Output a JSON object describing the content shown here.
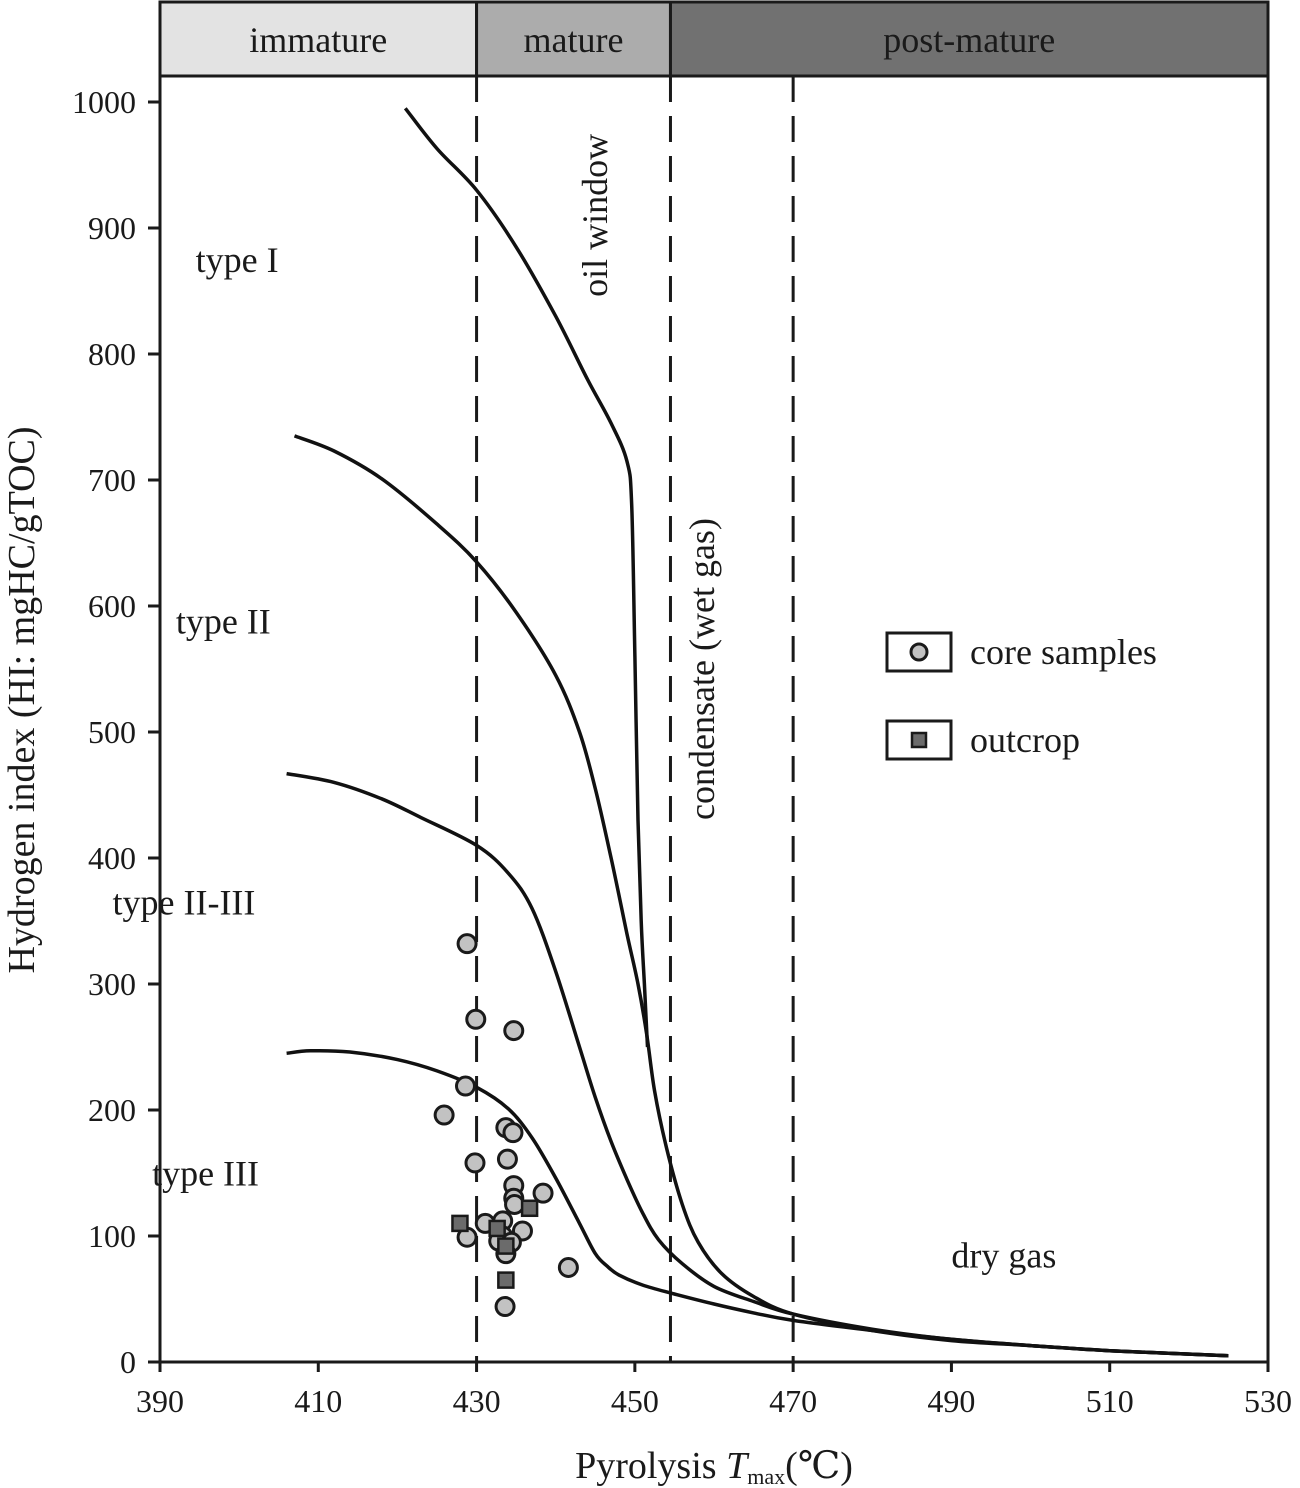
{
  "chart_data": {
    "type": "scatter",
    "xlabel": {
      "main": "Pyrolysis ",
      "italic": "T",
      "sub": "max",
      "unit": "(℃)"
    },
    "ylabel": "Hydrogen index (HI: mgHC/gTOC)",
    "xlim": [
      390,
      530
    ],
    "ylim": [
      0,
      1000
    ],
    "xticks": [
      390,
      410,
      430,
      450,
      470,
      490,
      510,
      530
    ],
    "yticks": [
      0,
      100,
      200,
      300,
      400,
      500,
      600,
      700,
      800,
      900,
      1000
    ],
    "grid": false,
    "legend_position": "right",
    "maturity_bands": [
      {
        "label": "immature",
        "from": 390,
        "to": 430,
        "color": "#e3e3e3"
      },
      {
        "label": "mature",
        "from": 430,
        "to": 454.5,
        "color": "#acacac"
      },
      {
        "label": "post-mature",
        "from": 454.5,
        "to": 530,
        "color": "#717171"
      }
    ],
    "dashed_lines": [
      430,
      454.5,
      470
    ],
    "curves": [
      {
        "name": "type I",
        "points": [
          [
            421,
            995
          ],
          [
            425,
            963
          ],
          [
            430,
            930
          ],
          [
            435,
            885
          ],
          [
            440,
            830
          ],
          [
            444,
            780
          ],
          [
            447,
            745
          ],
          [
            449,
            715
          ],
          [
            449.6,
            680
          ],
          [
            450,
            560
          ],
          [
            450.4,
            430
          ],
          [
            450.8,
            350
          ],
          [
            451.2,
            300
          ],
          [
            451.6,
            250
          ]
        ]
      },
      {
        "name": "type II",
        "points": [
          [
            407,
            735
          ],
          [
            412,
            723
          ],
          [
            418,
            701
          ],
          [
            425,
            665
          ],
          [
            430,
            635
          ],
          [
            435,
            595
          ],
          [
            440,
            545
          ],
          [
            443,
            500
          ],
          [
            445,
            455
          ],
          [
            447,
            400
          ],
          [
            449,
            340
          ],
          [
            450.4,
            300
          ],
          [
            451.5,
            260
          ],
          [
            452.5,
            215
          ],
          [
            454,
            170
          ],
          [
            456,
            125
          ],
          [
            458,
            95
          ],
          [
            461,
            70
          ],
          [
            465,
            52
          ],
          [
            470,
            38
          ],
          [
            480,
            25
          ],
          [
            490,
            17
          ],
          [
            500,
            13
          ],
          [
            510,
            9
          ],
          [
            525,
            5
          ]
        ]
      },
      {
        "name": "type II-III",
        "points": [
          [
            406,
            467
          ],
          [
            412,
            460
          ],
          [
            418,
            447
          ],
          [
            423,
            432
          ],
          [
            430,
            410
          ],
          [
            434,
            388
          ],
          [
            437,
            360
          ],
          [
            440,
            310
          ],
          [
            443,
            250
          ],
          [
            445,
            210
          ],
          [
            447,
            175
          ],
          [
            449,
            145
          ],
          [
            451,
            118
          ],
          [
            453,
            97
          ],
          [
            456,
            78
          ],
          [
            460,
            60
          ],
          [
            465,
            48
          ],
          [
            470,
            38
          ],
          [
            480,
            26
          ],
          [
            490,
            18
          ],
          [
            500,
            13
          ],
          [
            510,
            9
          ],
          [
            525,
            5
          ]
        ]
      },
      {
        "name": "type III",
        "points": [
          [
            406,
            245
          ],
          [
            409,
            247
          ],
          [
            414,
            246
          ],
          [
            420,
            240
          ],
          [
            425,
            231
          ],
          [
            430,
            218
          ],
          [
            434,
            201
          ],
          [
            437,
            178
          ],
          [
            440,
            146
          ],
          [
            443,
            110
          ],
          [
            445,
            86
          ],
          [
            446.5,
            76
          ],
          [
            448,
            69
          ],
          [
            451,
            61
          ],
          [
            455,
            54
          ],
          [
            460,
            46
          ],
          [
            465,
            39
          ],
          [
            470,
            33
          ],
          [
            480,
            25
          ],
          [
            490,
            18
          ],
          [
            500,
            13
          ],
          [
            510,
            9
          ],
          [
            525,
            5
          ]
        ]
      }
    ],
    "series": [
      {
        "name": "core samples",
        "marker": "circle",
        "color": "#c2c2c2",
        "points": [
          [
            428.8,
            332
          ],
          [
            429.9,
            272
          ],
          [
            434.7,
            263
          ],
          [
            428.6,
            219
          ],
          [
            425.9,
            196
          ],
          [
            433.7,
            186
          ],
          [
            434.6,
            182
          ],
          [
            433.9,
            161
          ],
          [
            429.8,
            158
          ],
          [
            434.7,
            140
          ],
          [
            434.7,
            130
          ],
          [
            434.8,
            125
          ],
          [
            438.4,
            134
          ],
          [
            431.1,
            110
          ],
          [
            433.3,
            112
          ],
          [
            435.8,
            104
          ],
          [
            433.3,
            100
          ],
          [
            432.8,
            96
          ],
          [
            434.4,
            95
          ],
          [
            433.7,
            86
          ],
          [
            428.8,
            99
          ],
          [
            441.6,
            75
          ],
          [
            433.6,
            44
          ]
        ]
      },
      {
        "name": "outcrop",
        "marker": "square",
        "color": "#6b6b6b",
        "points": [
          [
            427.9,
            110
          ],
          [
            432.6,
            106
          ],
          [
            436.7,
            122
          ],
          [
            433.7,
            92
          ],
          [
            433.7,
            65
          ]
        ]
      }
    ],
    "region_labels": [
      {
        "text": "type I",
        "x": 394.5,
        "y": 865
      },
      {
        "text": "type II",
        "x": 392,
        "y": 578
      },
      {
        "text": "type II-III",
        "x": 384,
        "y": 355
      },
      {
        "text": "type III",
        "x": 389,
        "y": 140
      },
      {
        "text": "oil window",
        "x": 446.5,
        "y": 910,
        "rotate": -90
      },
      {
        "text": "condensate (wet gas)",
        "x": 460,
        "y": 550,
        "rotate": -90
      },
      {
        "text": "dry gas",
        "x": 490,
        "y": 75
      }
    ],
    "legend": [
      {
        "label": "core samples",
        "marker": "circle"
      },
      {
        "label": "outcrop",
        "marker": "square"
      }
    ]
  }
}
